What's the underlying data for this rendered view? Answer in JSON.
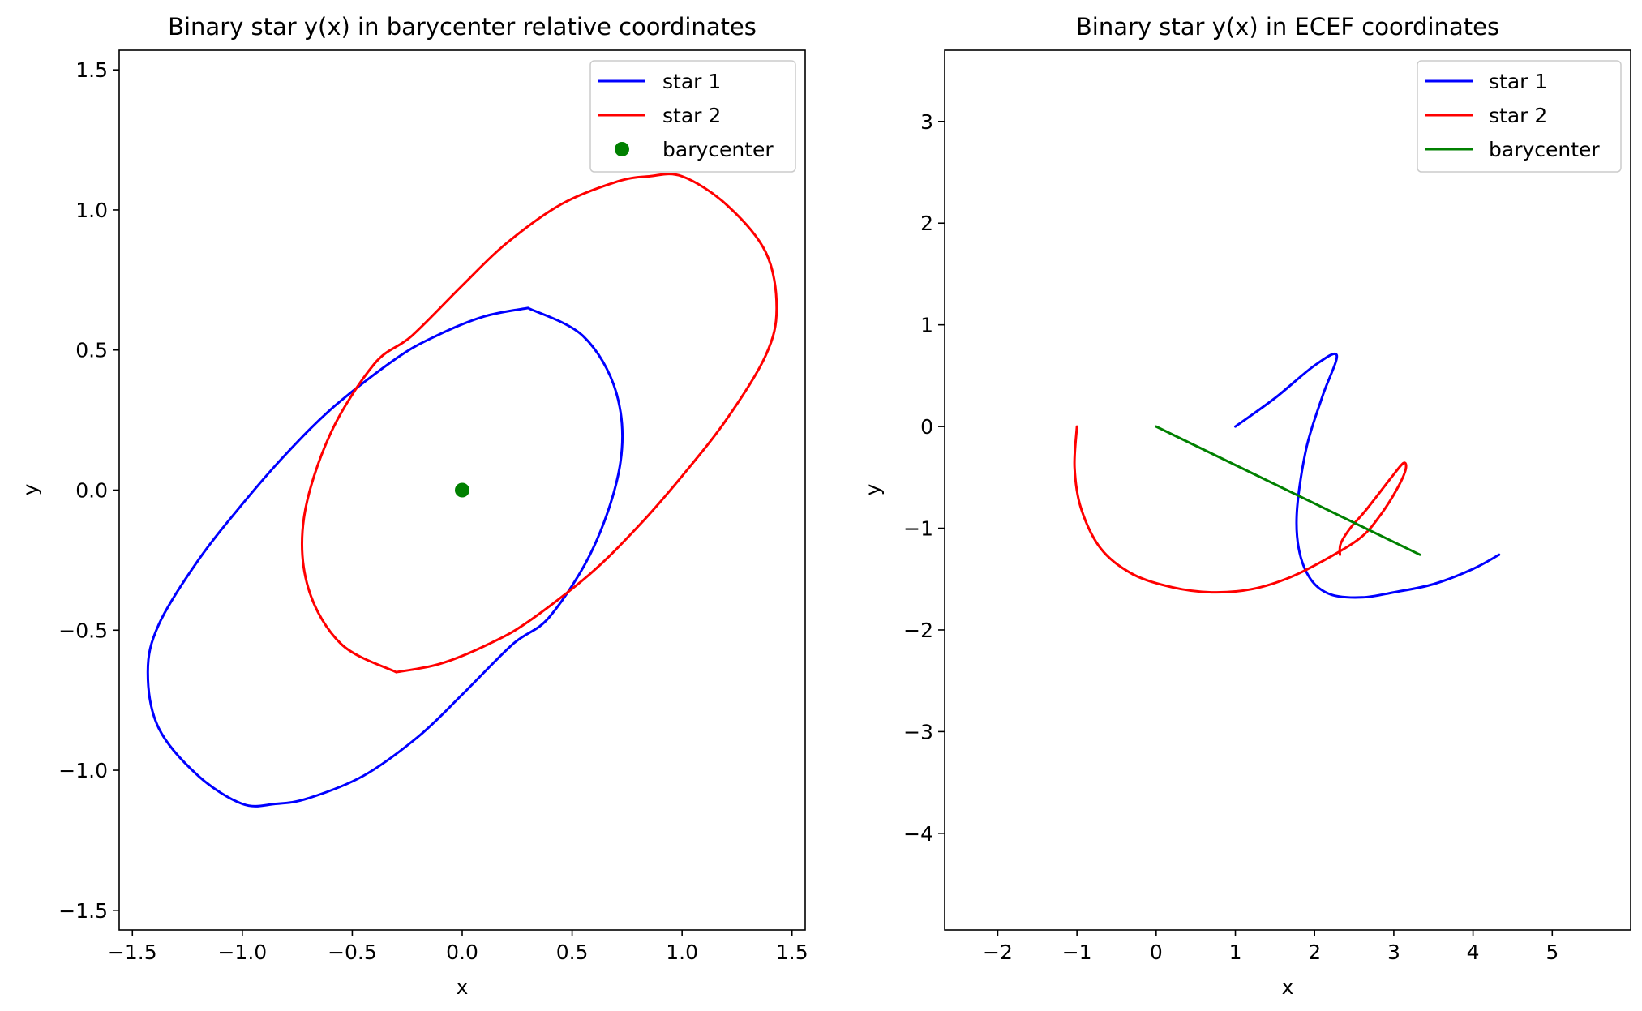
{
  "chart_data": [
    {
      "type": "line",
      "title": "Binary star y(x) in barycenter relative coordinates",
      "xlabel": "x",
      "ylabel": "y",
      "xlim": [
        -1.56,
        1.56
      ],
      "ylim": [
        -1.57,
        1.57
      ],
      "xticks": [
        -1.5,
        -1.0,
        -0.5,
        0.0,
        0.5,
        1.0,
        1.5
      ],
      "xtick_labels": [
        "−1.5",
        "−1.0",
        "−0.5",
        "0.0",
        "0.5",
        "1.0",
        "1.5"
      ],
      "yticks": [
        -1.5,
        -1.0,
        -0.5,
        0.0,
        0.5,
        1.0,
        1.5
      ],
      "ytick_labels": [
        "−1.5",
        "−1.0",
        "−0.5",
        "0.0",
        "0.5",
        "1.0",
        "1.5"
      ],
      "grid": false,
      "legend": {
        "placement": "upper right",
        "entries": [
          "star 1",
          "star 2",
          "barycenter"
        ]
      },
      "series": [
        {
          "name": "star 1",
          "color": "#0000ff",
          "kind": "line",
          "x": [
            0.3,
            0.55,
            0.7,
            0.72,
            0.6,
            0.4,
            0.23,
            0.0,
            -0.2,
            -0.45,
            -0.7,
            -0.85,
            -1.0,
            -1.2,
            -1.38,
            -1.43,
            -1.38,
            -1.2,
            -1.0,
            -0.8,
            -0.58,
            -0.3,
            -0.12,
            0.1,
            0.3
          ],
          "y": [
            0.65,
            0.55,
            0.35,
            0.1,
            -0.2,
            -0.45,
            -0.55,
            -0.73,
            -0.88,
            -1.02,
            -1.1,
            -1.12,
            -1.12,
            -1.02,
            -0.85,
            -0.65,
            -0.48,
            -0.25,
            -0.05,
            0.13,
            0.3,
            0.47,
            0.55,
            0.62,
            0.65
          ]
        },
        {
          "name": "star 2",
          "color": "#ff0000",
          "kind": "line",
          "x": [
            -0.3,
            -0.55,
            -0.7,
            -0.72,
            -0.6,
            -0.4,
            -0.23,
            0.0,
            0.2,
            0.45,
            0.7,
            0.85,
            1.0,
            1.2,
            1.38,
            1.43,
            1.38,
            1.2,
            1.0,
            0.8,
            0.58,
            0.3,
            0.12,
            -0.1,
            -0.3
          ],
          "y": [
            -0.65,
            -0.55,
            -0.35,
            -0.1,
            0.2,
            0.45,
            0.55,
            0.73,
            0.88,
            1.02,
            1.1,
            1.12,
            1.12,
            1.02,
            0.85,
            0.65,
            0.48,
            0.25,
            0.05,
            -0.13,
            -0.3,
            -0.47,
            -0.55,
            -0.62,
            -0.65
          ]
        },
        {
          "name": "barycenter",
          "color": "#008000",
          "kind": "point",
          "x": [
            0.0
          ],
          "y": [
            0.0
          ]
        }
      ]
    },
    {
      "type": "line",
      "title": "Binary star y(x) in ECEF coordinates",
      "xlabel": "x",
      "ylabel": "y",
      "xlim": [
        -2.67,
        5.99
      ],
      "ylim": [
        -4.95,
        3.7
      ],
      "xticks": [
        -2,
        -1,
        0,
        1,
        2,
        3,
        4,
        5
      ],
      "xtick_labels": [
        "−2",
        "−1",
        "0",
        "1",
        "2",
        "3",
        "4",
        "5"
      ],
      "yticks": [
        -4,
        -3,
        -2,
        -1,
        0,
        1,
        2,
        3
      ],
      "ytick_labels": [
        "−4",
        "−3",
        "−2",
        "−1",
        "0",
        "1",
        "2",
        "3"
      ],
      "grid": false,
      "legend": {
        "placement": "upper right",
        "entries": [
          "star 1",
          "star 2",
          "barycenter"
        ]
      },
      "series": [
        {
          "name": "star 1",
          "color": "#0000ff",
          "kind": "line",
          "x": [
            1.0,
            1.5,
            2.0,
            2.28,
            2.1,
            1.9,
            1.78,
            1.8,
            1.95,
            2.2,
            2.6,
            3.0,
            3.5,
            4.0,
            4.33
          ],
          "y": [
            0.0,
            0.28,
            0.6,
            0.7,
            0.3,
            -0.2,
            -0.8,
            -1.2,
            -1.5,
            -1.65,
            -1.68,
            -1.63,
            -1.55,
            -1.4,
            -1.26
          ]
        },
        {
          "name": "star 2",
          "color": "#ff0000",
          "kind": "line",
          "x": [
            -1.0,
            -1.03,
            -0.95,
            -0.7,
            -0.3,
            0.2,
            0.7,
            1.2,
            1.7,
            2.2,
            2.6,
            2.85,
            3.05,
            3.15,
            3.12,
            2.95,
            2.65,
            2.45,
            2.33,
            2.32
          ],
          "y": [
            0.0,
            -0.4,
            -0.8,
            -1.2,
            -1.45,
            -1.58,
            -1.63,
            -1.6,
            -1.48,
            -1.28,
            -1.08,
            -0.85,
            -0.6,
            -0.42,
            -0.36,
            -0.52,
            -0.82,
            -1.0,
            -1.15,
            -1.26
          ]
        },
        {
          "name": "barycenter",
          "color": "#008000",
          "kind": "line",
          "x": [
            0.0,
            3.33
          ],
          "y": [
            0.0,
            -1.26
          ]
        }
      ]
    }
  ]
}
